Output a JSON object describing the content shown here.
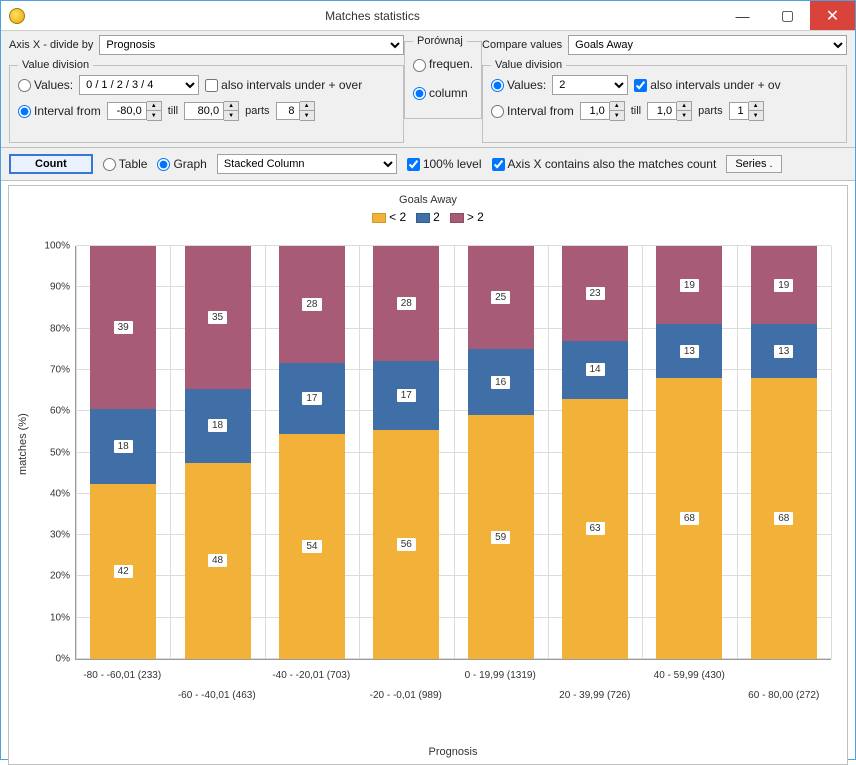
{
  "window": {
    "title": "Matches statistics"
  },
  "axisX": {
    "label": "Axis X - divide by",
    "selected": "Prognosis"
  },
  "valueDivisionLeft": {
    "legend": "Value division",
    "valuesLabel": "Values:",
    "valuesSelected": "0 / 1 / 2 / 3 / 4",
    "alsoIntervals": "also intervals under + over",
    "intervalLabel": "Interval from",
    "intervalFrom": "-80,0",
    "till": "till",
    "intervalTill": "80,0",
    "partsLabel": "parts",
    "parts": "8"
  },
  "porownaj": {
    "legend": "Porównaj",
    "frequen": "frequen.",
    "column": "column"
  },
  "compareValues": {
    "label": "Compare values",
    "selected": "Goals Away"
  },
  "valueDivisionRight": {
    "legend": "Value division",
    "valuesLabel": "Values:",
    "valuesSelected": "2",
    "alsoIntervals": "also intervals under + ov",
    "intervalLabel": "Interval from",
    "intervalFrom": "1,0",
    "till": "till",
    "intervalTill": "1,0",
    "partsLabel": "parts",
    "parts": "1"
  },
  "toolbar": {
    "count": "Count",
    "table": "Table",
    "graph": "Graph",
    "graphType": "Stacked Column",
    "level100": "100% level",
    "axisMatchesCount": "Axis X contains also the matches count",
    "series": "Series ."
  },
  "chart": {
    "title": "Goals Away",
    "legend_items": [
      {
        "label": "< 2",
        "color": "#f2b23a"
      },
      {
        "label": "2",
        "color": "#3f6fa6"
      },
      {
        "label": "> 2",
        "color": "#a85b77"
      }
    ],
    "y_label": "matches (%)",
    "y_ticks": [
      "0%",
      "10%",
      "20%",
      "30%",
      "40%",
      "50%",
      "60%",
      "70%",
      "80%",
      "90%",
      "100%"
    ],
    "x_axis_title": "Prognosis",
    "colors": {
      "lt2": "#f2b23a",
      "eq2": "#3f6fa6",
      "gt2": "#a85b77",
      "grid": "#dcdcdc",
      "bg": "#ffffff"
    },
    "categories": [
      {
        "label": "-80 - -60,01 (233)",
        "lt2": 42,
        "eq2": 18,
        "gt2": 39,
        "label_row": 0
      },
      {
        "label": "-60 - -40,01 (463)",
        "lt2": 48,
        "eq2": 18,
        "gt2": 35,
        "label_row": 1
      },
      {
        "label": "-40 - -20,01 (703)",
        "lt2": 54,
        "eq2": 17,
        "gt2": 28,
        "label_row": 0
      },
      {
        "label": "-20 - -0,01 (989)",
        "lt2": 56,
        "eq2": 17,
        "gt2": 28,
        "label_row": 1
      },
      {
        "label": "0 - 19,99 (1319)",
        "lt2": 59,
        "eq2": 16,
        "gt2": 25,
        "label_row": 0
      },
      {
        "label": "20 - 39,99 (726)",
        "lt2": 63,
        "eq2": 14,
        "gt2": 23,
        "label_row": 1
      },
      {
        "label": "40 - 59,99 (430)",
        "lt2": 68,
        "eq2": 13,
        "gt2": 19,
        "label_row": 0
      },
      {
        "label": "60 - 80,00 (272)",
        "lt2": 68,
        "eq2": 13,
        "gt2": 19,
        "label_row": 1
      }
    ]
  }
}
